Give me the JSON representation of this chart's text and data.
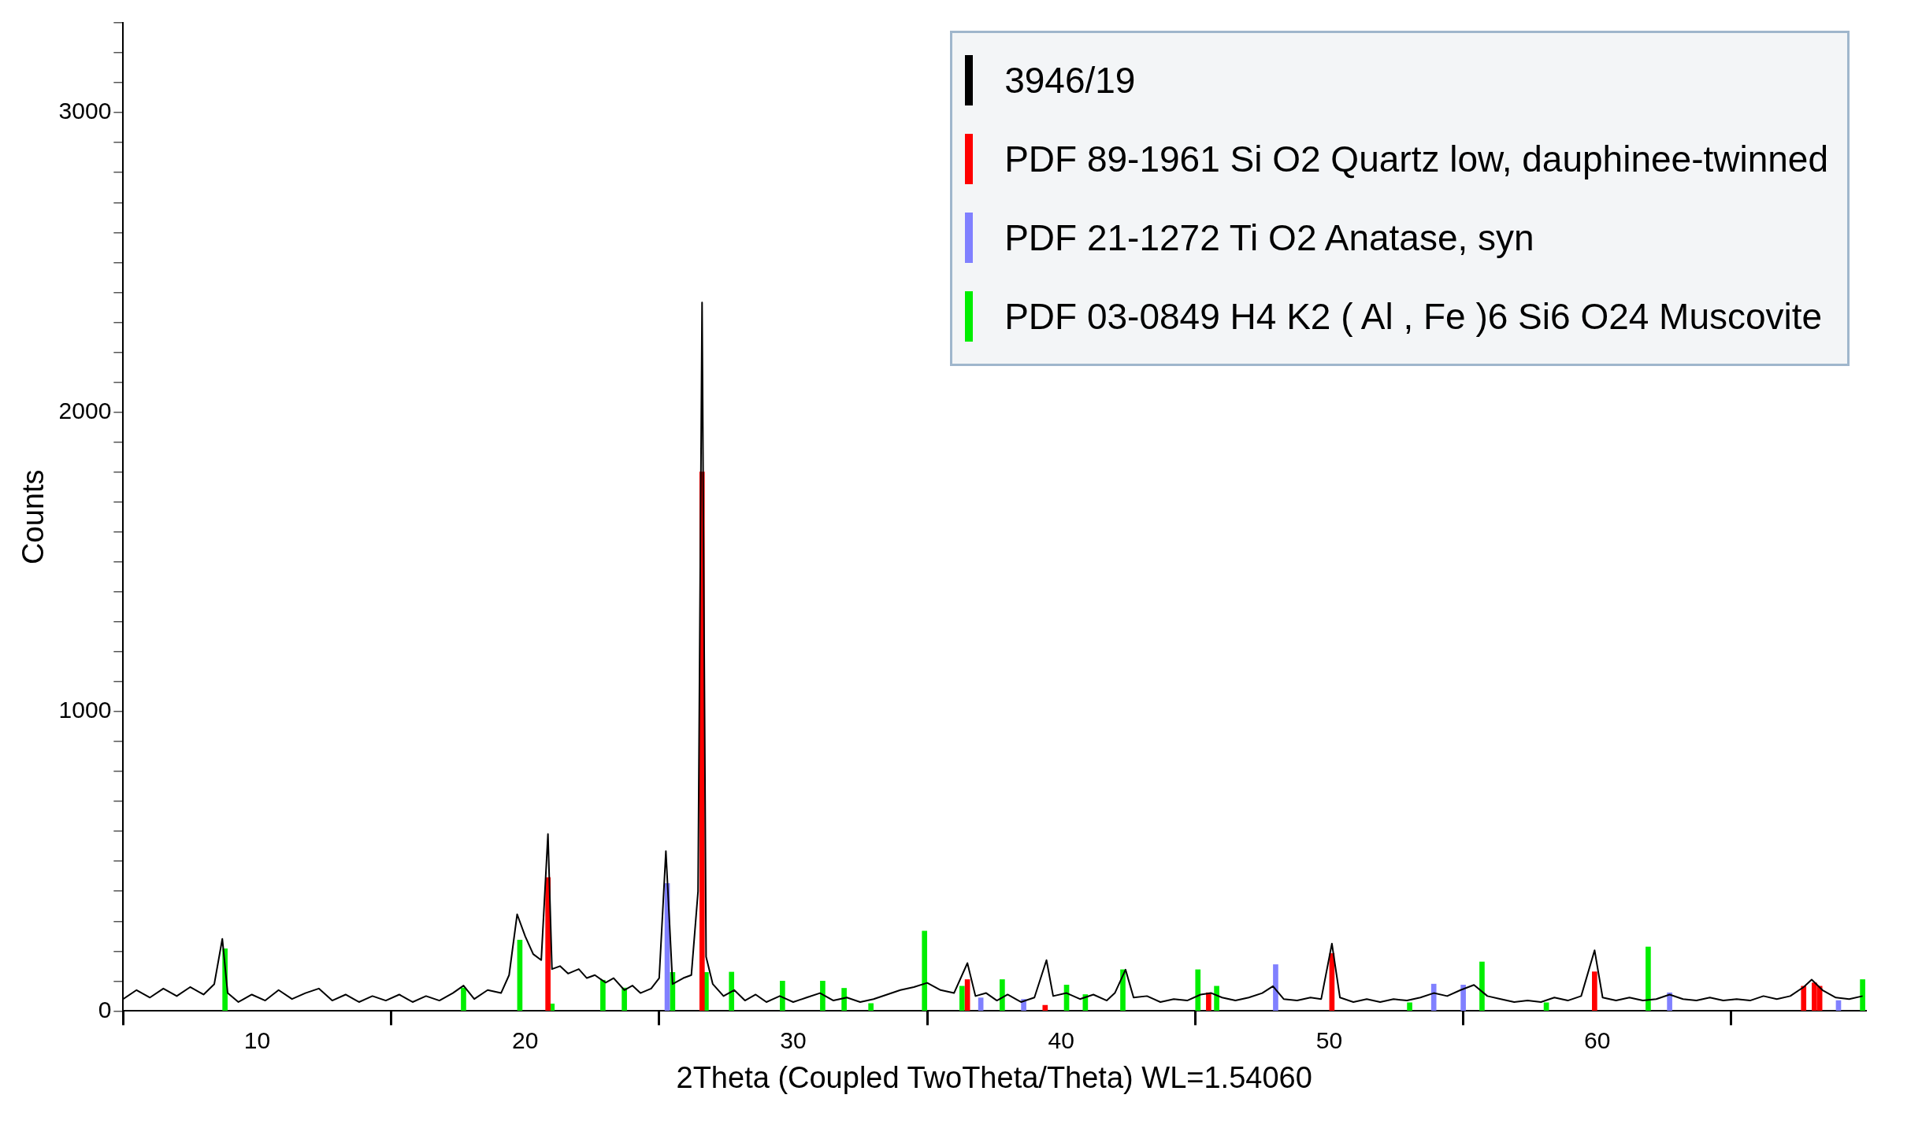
{
  "chart_data": {
    "type": "line",
    "xlabel": "2Theta (Coupled TwoTheta/Theta) WL=1.54060",
    "ylabel": "Counts",
    "xlim": [
      5,
      70
    ],
    "xticks": [
      10,
      20,
      30,
      40,
      50,
      60
    ],
    "ylim": [
      0,
      3300
    ],
    "yticks": [
      0,
      {
        "value": 100,
        "label": null
      },
      {
        "value": 200,
        "label": null
      },
      {
        "value": 300,
        "label": null
      },
      {
        "value": 400,
        "label": null
      },
      {
        "value": 500,
        "label": null
      },
      {
        "value": 600,
        "label": null
      },
      {
        "value": 700,
        "label": null
      },
      {
        "value": 800,
        "label": null
      },
      {
        "value": 900,
        "label": null
      },
      1000,
      {
        "value": 1100,
        "label": null
      },
      {
        "value": 1200,
        "label": null
      },
      {
        "value": 1300,
        "label": null
      },
      {
        "value": 1400,
        "label": null
      },
      {
        "value": 1500,
        "label": null
      },
      {
        "value": 1600,
        "label": null
      },
      {
        "value": 1700,
        "label": null
      },
      {
        "value": 1800,
        "label": null
      },
      {
        "value": 1900,
        "label": null
      },
      2000,
      {
        "value": 2100,
        "label": null
      },
      {
        "value": 2200,
        "label": null
      },
      {
        "value": 2300,
        "label": null
      },
      {
        "value": 2400,
        "label": null
      },
      {
        "value": 2500,
        "label": null
      },
      {
        "value": 2600,
        "label": null
      },
      {
        "value": 2700,
        "label": null
      },
      {
        "value": 2800,
        "label": null
      },
      {
        "value": 2900,
        "label": null
      },
      3000,
      {
        "value": 3100,
        "label": null
      },
      {
        "value": 3200,
        "label": null
      },
      {
        "value": 3300,
        "label": null
      }
    ],
    "legend": "top right",
    "marker": "none",
    "series": [
      {
        "name": "3946/19",
        "color": "#000000",
        "x": [
          5,
          5.5,
          6,
          6.5,
          7,
          7.5,
          8,
          8.4,
          8.7,
          8.9,
          9.3,
          9.8,
          10.3,
          10.8,
          11.3,
          11.8,
          12.3,
          12.8,
          13.3,
          13.8,
          14.3,
          14.8,
          15.3,
          15.8,
          16.3,
          16.8,
          17.3,
          17.7,
          18.1,
          18.6,
          19.1,
          19.4,
          19.7,
          20.0,
          20.3,
          20.6,
          20.85,
          21.0,
          21.3,
          21.6,
          22.0,
          22.3,
          22.6,
          23.0,
          23.3,
          23.7,
          24.0,
          24.3,
          24.7,
          25.0,
          25.25,
          25.5,
          25.9,
          26.2,
          26.45,
          26.6,
          26.75,
          27.0,
          27.4,
          27.8,
          28.2,
          28.6,
          29.0,
          29.5,
          30.0,
          30.5,
          31.0,
          31.5,
          32.0,
          32.5,
          33.0,
          33.5,
          34.0,
          34.5,
          35.0,
          35.5,
          36.0,
          36.5,
          36.8,
          37.2,
          37.6,
          38.0,
          38.5,
          39.0,
          39.45,
          39.7,
          40.2,
          40.7,
          41.2,
          41.7,
          42.0,
          42.4,
          42.7,
          43.2,
          43.7,
          44.2,
          44.7,
          45.2,
          45.6,
          46.0,
          46.5,
          47.0,
          47.5,
          47.9,
          48.3,
          48.8,
          49.3,
          49.7,
          50.1,
          50.4,
          50.9,
          51.4,
          51.9,
          52.4,
          52.9,
          53.4,
          53.9,
          54.4,
          54.9,
          55.4,
          55.9,
          56.4,
          56.9,
          57.4,
          57.9,
          58.4,
          58.9,
          59.4,
          59.9,
          60.2,
          60.7,
          61.2,
          61.7,
          62.2,
          62.7,
          63.2,
          63.7,
          64.2,
          64.7,
          65.2,
          65.7,
          66.2,
          66.7,
          67.2,
          67.7,
          68.0,
          68.4,
          68.9,
          69.4,
          69.9
        ],
        "values": [
          40,
          70,
          45,
          75,
          50,
          80,
          55,
          90,
          241,
          60,
          30,
          55,
          35,
          70,
          40,
          60,
          75,
          35,
          55,
          30,
          50,
          35,
          55,
          30,
          50,
          35,
          60,
          85,
          40,
          70,
          60,
          120,
          323,
          250,
          190,
          170,
          591,
          140,
          150,
          125,
          140,
          110,
          120,
          95,
          110,
          70,
          85,
          60,
          75,
          110,
          534,
          90,
          110,
          120,
          400,
          2366,
          181,
          90,
          50,
          70,
          35,
          55,
          30,
          50,
          30,
          45,
          60,
          35,
          45,
          30,
          40,
          55,
          70,
          80,
          94,
          70,
          60,
          160,
          50,
          60,
          35,
          55,
          30,
          45,
          170,
          50,
          60,
          40,
          55,
          35,
          60,
          138,
          45,
          50,
          30,
          40,
          35,
          55,
          60,
          45,
          35,
          45,
          60,
          83,
          40,
          35,
          45,
          40,
          225,
          45,
          30,
          40,
          30,
          40,
          35,
          45,
          60,
          50,
          70,
          87,
          50,
          40,
          30,
          35,
          30,
          45,
          35,
          50,
          203,
          45,
          35,
          45,
          35,
          40,
          55,
          40,
          35,
          45,
          35,
          40,
          35,
          50,
          40,
          50,
          80,
          105,
          70,
          45,
          40,
          50
        ]
      },
      {
        "name": "PDF 89-1961 Si O2 Quartz low, dauphinee-twinned",
        "type": "bar",
        "color": "#ff0000",
        "x": [
          20.85,
          26.6,
          36.5,
          39.4,
          45.5,
          50.1,
          59.9,
          67.7,
          68.1,
          68.3
        ],
        "values": [
          446,
          1800,
          105,
          19,
          61,
          192,
          131,
          83,
          94,
          83
        ]
      },
      {
        "name": "PDF 21-1272 Ti O2 Anatase, syn",
        "type": "bar",
        "color": "#8080ff",
        "x": [
          25.3,
          37.0,
          38.6,
          48.0,
          53.9,
          55.0,
          62.7,
          69.0
        ],
        "values": [
          426,
          44,
          39,
          155,
          90,
          87,
          61,
          35
        ]
      },
      {
        "name": "PDF 03-0849 H4 K2 ( Al , Fe )6 Si6 O24 Muscovite",
        "type": "bar",
        "color": "#00ee00",
        "x": [
          8.8,
          17.7,
          19.8,
          21.0,
          22.9,
          23.7,
          25.5,
          26.75,
          27.7,
          29.6,
          31.1,
          31.9,
          32.9,
          34.9,
          36.3,
          37.8,
          40.2,
          40.9,
          42.3,
          45.1,
          45.8,
          53.0,
          55.7,
          58.1,
          61.9,
          69.9
        ],
        "values": [
          208,
          77,
          237,
          24,
          103,
          77,
          129,
          129,
          130,
          100,
          100,
          76,
          25,
          267,
          83,
          105,
          87,
          55,
          138,
          138,
          83,
          28,
          164,
          28,
          214,
          105
        ]
      }
    ]
  }
}
